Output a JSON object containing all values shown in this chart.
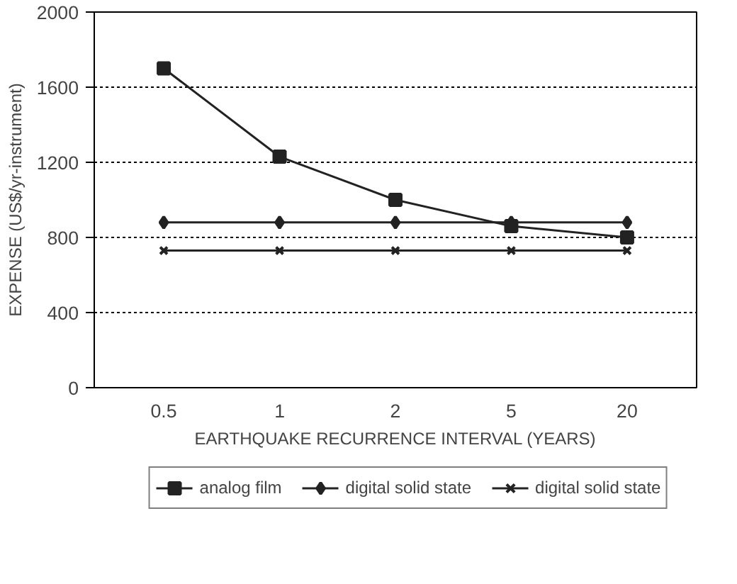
{
  "chart_data": {
    "type": "line",
    "xlabel": "EARTHQUAKE RECURRENCE INTERVAL (YEARS)",
    "ylabel": "EXPENSE (US$/yr-instrument)",
    "categories": [
      "0.5",
      "1",
      "2",
      "5",
      "20"
    ],
    "series": [
      {
        "name": "analog film",
        "color": "#222222",
        "marker": "square",
        "values": [
          1700,
          1230,
          1000,
          860,
          800
        ]
      },
      {
        "name": "digital solid state",
        "color": "#222222",
        "marker": "diamond",
        "values": [
          880,
          880,
          880,
          880,
          880
        ]
      },
      {
        "name": "digital solid state",
        "color": "#222222",
        "marker": "cross",
        "values": [
          730,
          730,
          730,
          730,
          730
        ]
      }
    ],
    "ylim": [
      0,
      2000
    ],
    "yticks": [
      0,
      400,
      800,
      1200,
      1600,
      2000
    ],
    "grid": "y",
    "legend": "bottom",
    "line_style": "solid"
  }
}
